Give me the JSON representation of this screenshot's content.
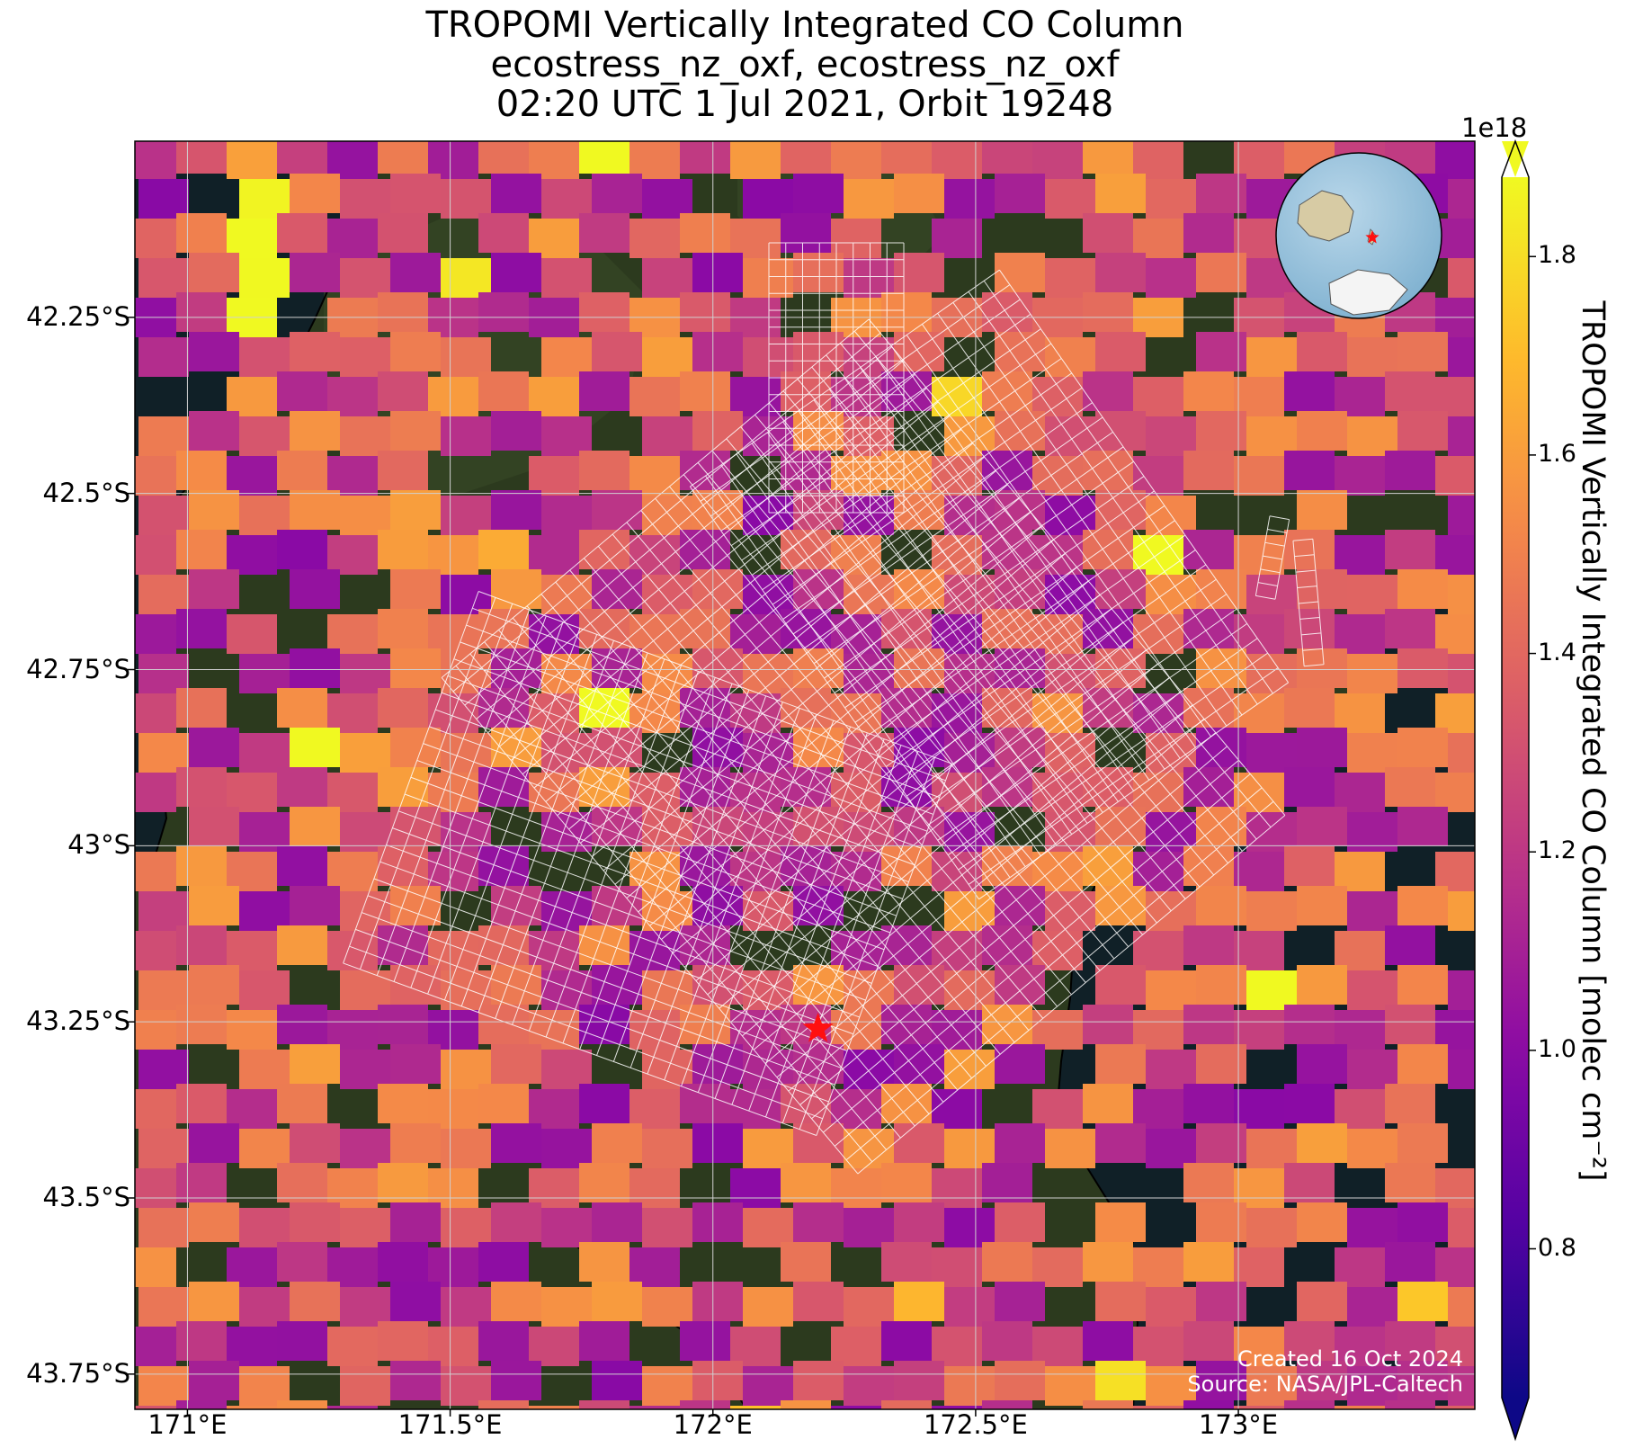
{
  "title": {
    "line1": "TROPOMI Vertically Integrated CO Column",
    "line2": "ecostress_nz_oxf, ecostress_nz_oxf",
    "line3": "02:20 UTC 1 Jul 2021, Orbit 19248"
  },
  "map": {
    "lon_range": [
      170.9,
      173.45
    ],
    "lat_range": [
      -43.8,
      -42.0
    ],
    "gridlines": true,
    "lat_ticks": [
      {
        "value": -42.25,
        "label": "42.25°S"
      },
      {
        "value": -42.5,
        "label": "42.5°S"
      },
      {
        "value": -42.75,
        "label": "42.75°S"
      },
      {
        "value": -43.0,
        "label": "43°S"
      },
      {
        "value": -43.25,
        "label": "43.25°S"
      },
      {
        "value": -43.5,
        "label": "43.5°S"
      },
      {
        "value": -43.75,
        "label": "43.75°S"
      }
    ],
    "lon_ticks": [
      {
        "value": 171.0,
        "label": "171°E"
      },
      {
        "value": 171.5,
        "label": "171.5°E"
      },
      {
        "value": 172.0,
        "label": "172°E"
      },
      {
        "value": 172.5,
        "label": "172.5°E"
      },
      {
        "value": 173.0,
        "label": "173°E"
      }
    ],
    "site_marker": {
      "lon": 172.2,
      "lat": -43.26,
      "symbol": "star",
      "color": "#ff1010"
    },
    "colors": {
      "ocean": "#102027",
      "land": "#2c3a1e",
      "gridline": "#ffffff",
      "footprint": "#ffffff",
      "coastline": "#000000"
    },
    "inset_globe": {
      "marker": "star",
      "marker_color": "#ff1010"
    }
  },
  "colorbar": {
    "colormap": "plasma",
    "exponent_label": "1e18",
    "range": [
      0.65,
      1.88
    ],
    "ticks": [
      {
        "value": 0.8,
        "label": "0.8"
      },
      {
        "value": 1.0,
        "label": "1.0"
      },
      {
        "value": 1.2,
        "label": "1.2"
      },
      {
        "value": 1.4,
        "label": "1.4"
      },
      {
        "value": 1.6,
        "label": "1.6"
      },
      {
        "value": 1.8,
        "label": "1.8"
      }
    ],
    "label": "TROPOMI Vertically Integrated CO Column [molec cm⁻²]",
    "extend": "both"
  },
  "credits": {
    "created": "Created 16 Oct 2024",
    "source": "Source: NASA/JPL-Caltech"
  }
}
